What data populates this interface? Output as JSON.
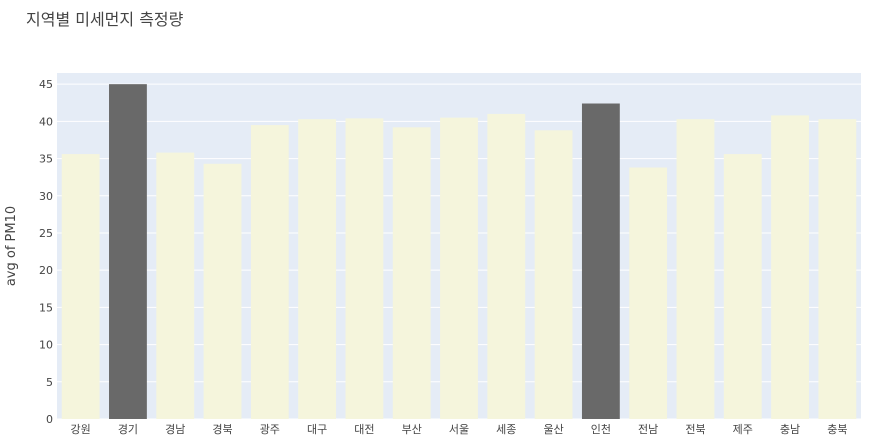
{
  "chart_data": {
    "type": "bar",
    "title": "지역별 미세먼지 측정량",
    "xlabel": "",
    "ylabel": "avg of PM10",
    "categories": [
      "강원",
      "경기",
      "경남",
      "경북",
      "광주",
      "대구",
      "대전",
      "부산",
      "서울",
      "세종",
      "울산",
      "인천",
      "전남",
      "전북",
      "제주",
      "충남",
      "충북"
    ],
    "values": [
      35.6,
      45.0,
      35.8,
      34.3,
      39.5,
      40.3,
      40.4,
      39.2,
      40.5,
      41.0,
      38.8,
      42.4,
      33.8,
      40.3,
      35.6,
      40.8,
      40.3
    ],
    "highlighted": [
      "경기",
      "인천"
    ],
    "ylim": [
      0,
      46.5
    ],
    "yticks": [
      0,
      5,
      10,
      15,
      20,
      25,
      30,
      35,
      40,
      45
    ],
    "grid": true,
    "colors": {
      "bar": "#f5f5dc",
      "highlight": "#696969",
      "plot_bg": "#e5ecf6",
      "grid": "#ffffff",
      "text": "#444444"
    }
  }
}
